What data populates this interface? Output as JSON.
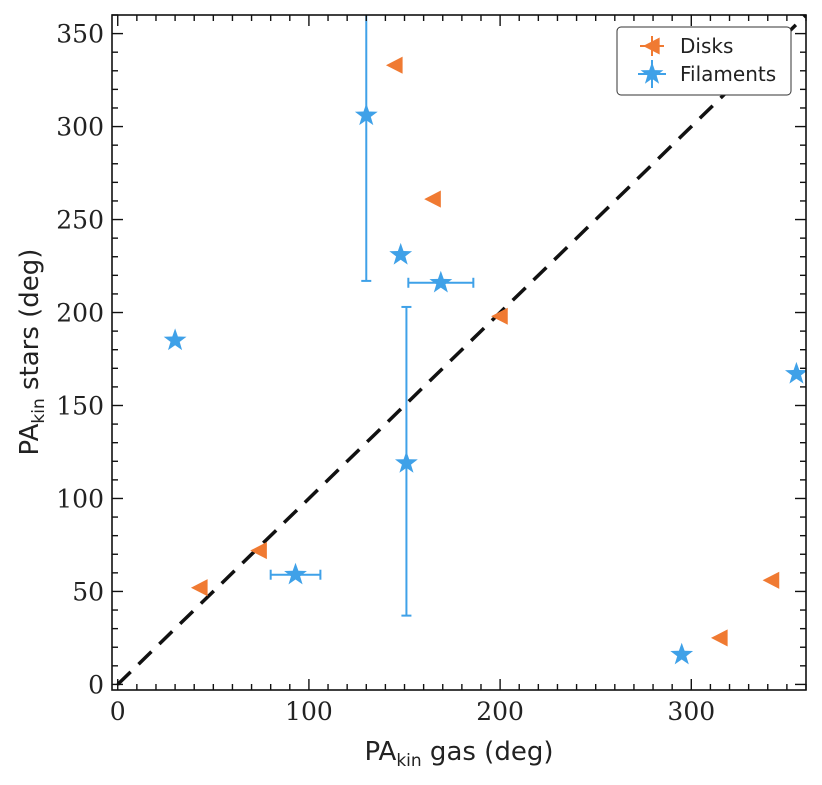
{
  "chart_data": {
    "type": "scatter",
    "xlabel": {
      "main": "PA",
      "sub": "kin",
      "rest": " gas (deg)"
    },
    "ylabel": {
      "main": "PA",
      "sub": "kin",
      "rest": " stars (deg)"
    },
    "xlim": [
      -3,
      360
    ],
    "ylim": [
      -3,
      360
    ],
    "x_ticks": [
      0,
      100,
      200,
      300
    ],
    "y_ticks": [
      0,
      50,
      100,
      150,
      200,
      250,
      300,
      350
    ],
    "grid": false,
    "legend_position": "top-right",
    "reference_line": {
      "style": "dashed",
      "from": [
        0,
        0
      ],
      "to": [
        360,
        360
      ]
    },
    "series": [
      {
        "name": "Disks",
        "marker": "triangle-left",
        "color": "#F07A32",
        "points": [
          {
            "x": 145,
            "y": 333
          },
          {
            "x": 165,
            "y": 261
          },
          {
            "x": 200,
            "y": 198
          },
          {
            "x": 74,
            "y": 72
          },
          {
            "x": 43,
            "y": 52
          },
          {
            "x": 342,
            "y": 56
          },
          {
            "x": 315,
            "y": 25
          }
        ]
      },
      {
        "name": "Filaments",
        "marker": "star",
        "color": "#3FA1E8",
        "points": [
          {
            "x": 130,
            "y": 306,
            "yerr": [
              89,
              60
            ]
          },
          {
            "x": 148,
            "y": 231
          },
          {
            "x": 169,
            "y": 216,
            "xerr": [
              17,
              17
            ]
          },
          {
            "x": 30,
            "y": 185
          },
          {
            "x": 151,
            "y": 119,
            "yerr": [
              82,
              84
            ]
          },
          {
            "x": 93,
            "y": 59,
            "xerr": [
              13,
              13
            ]
          },
          {
            "x": 355,
            "y": 167
          },
          {
            "x": 295,
            "y": 16
          }
        ]
      }
    ]
  }
}
